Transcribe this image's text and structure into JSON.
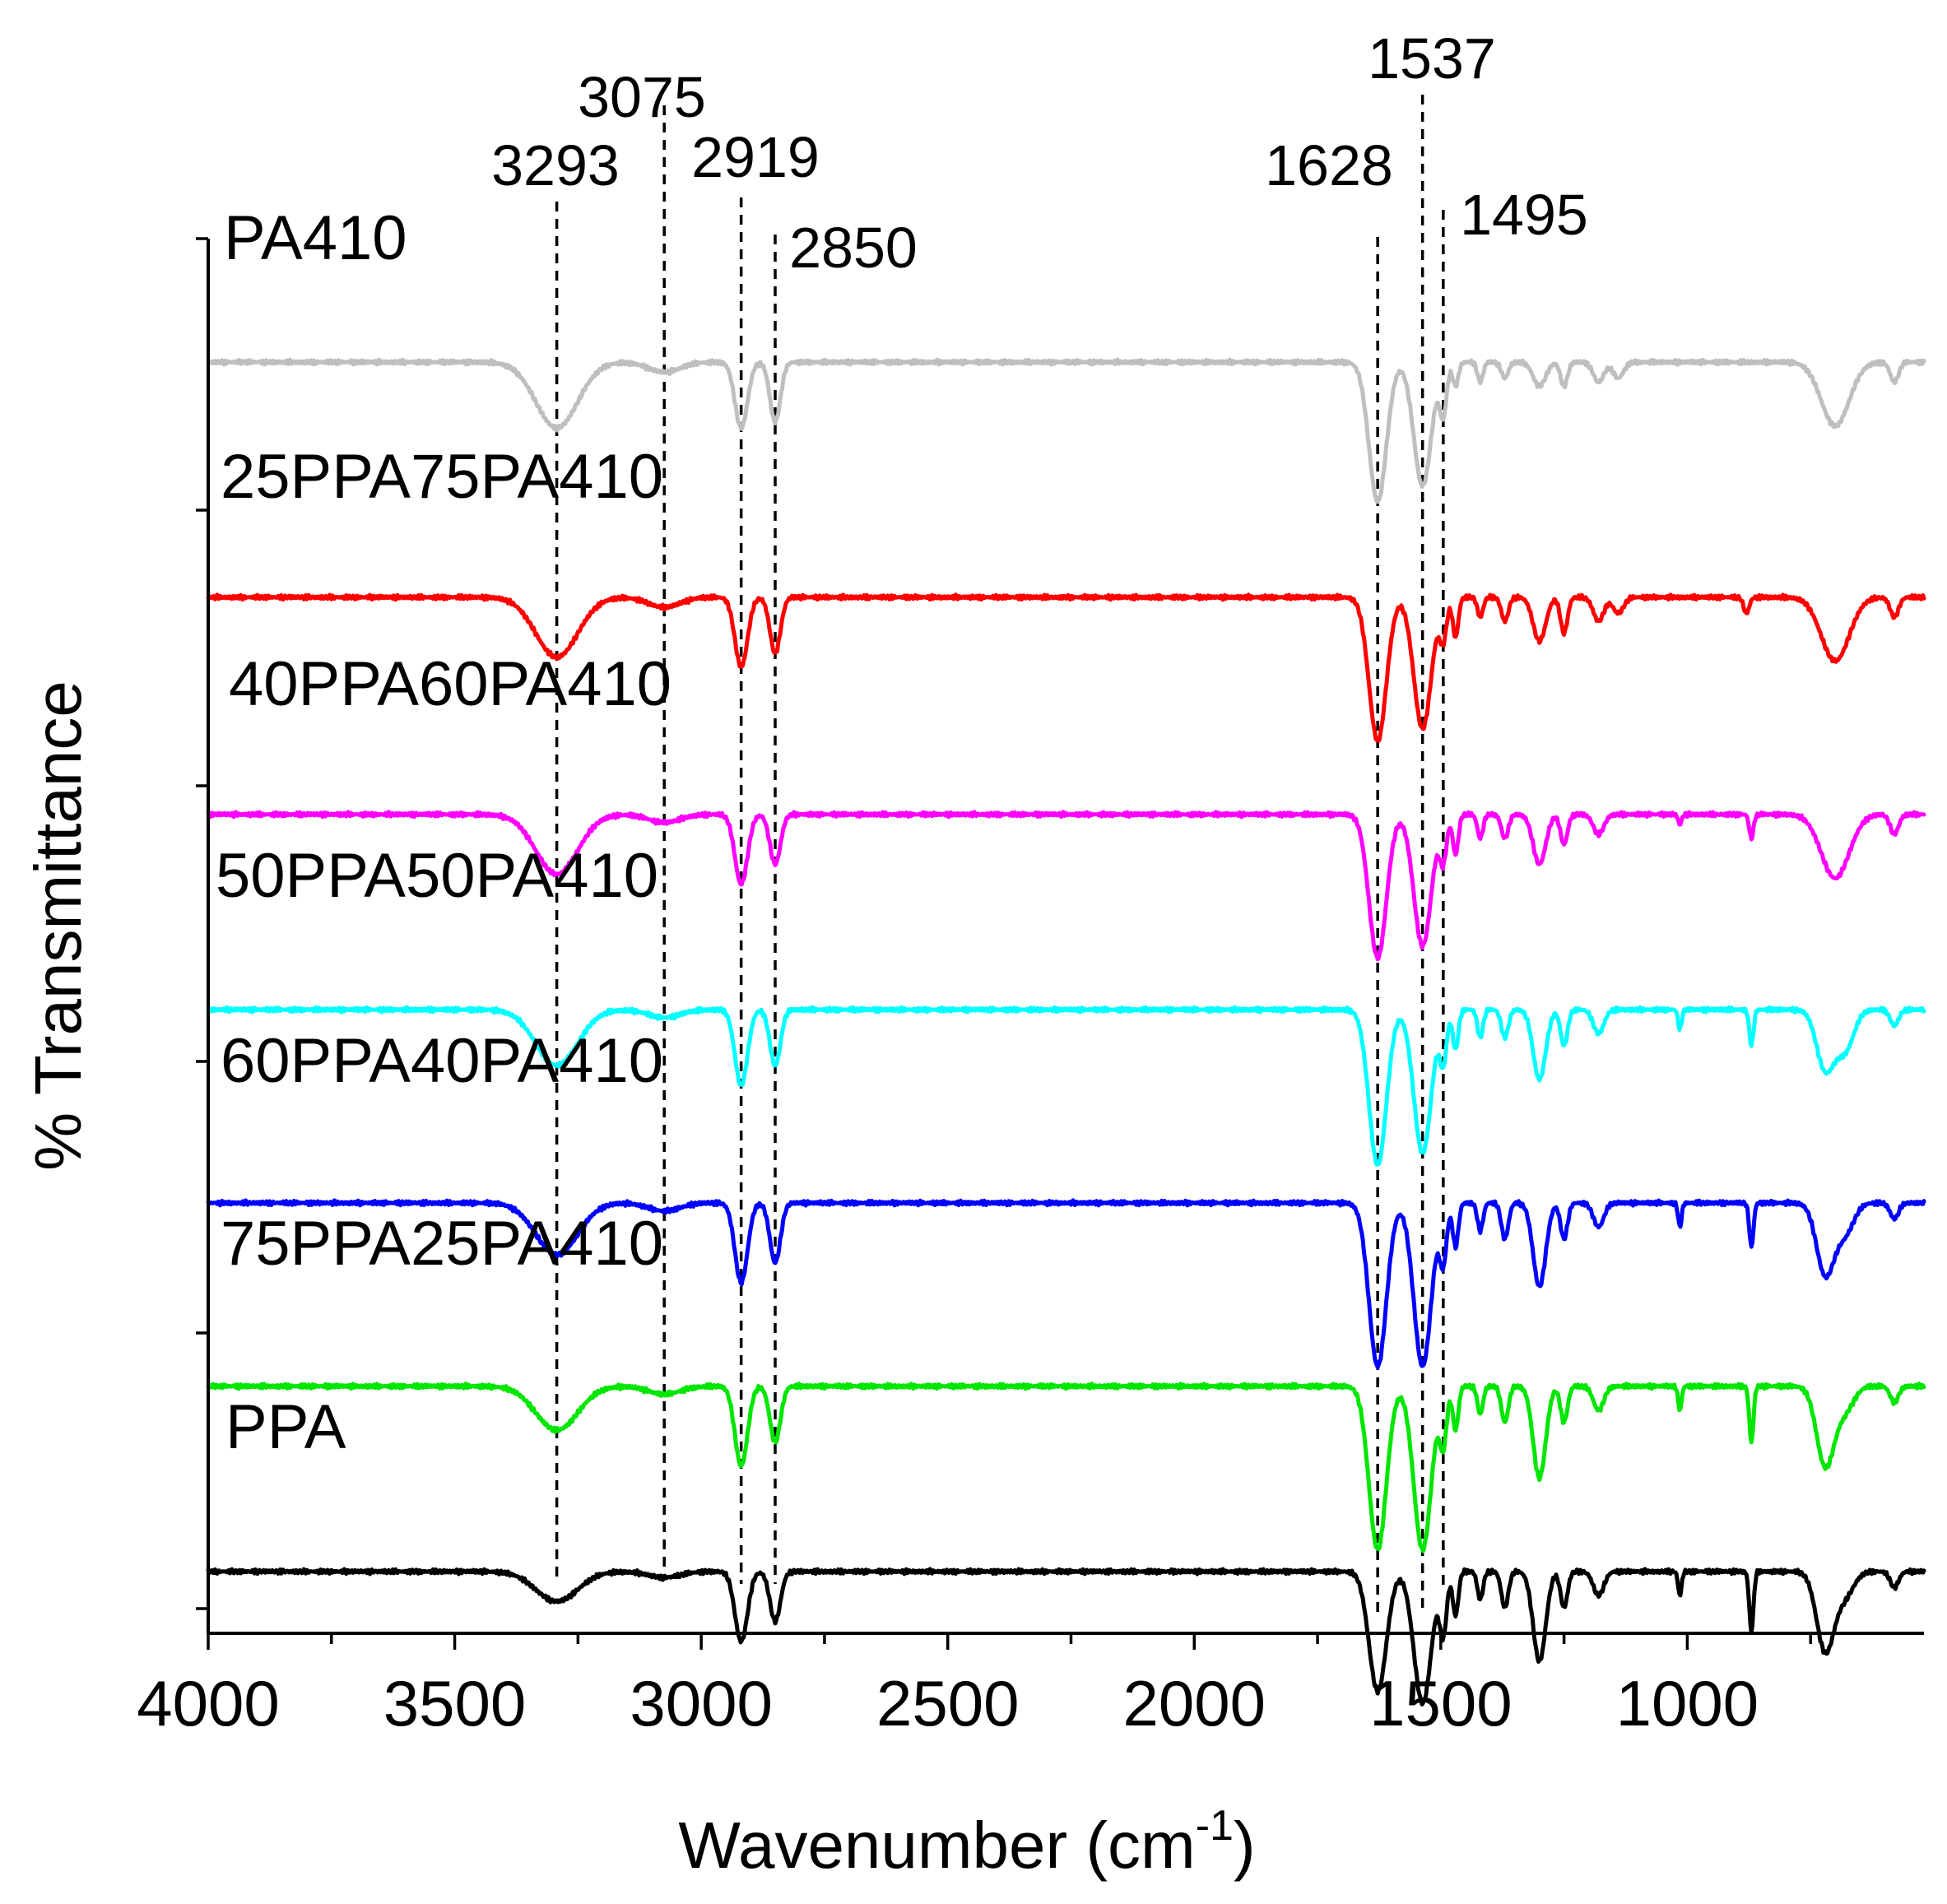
{
  "chart_data": {
    "type": "line",
    "title": "",
    "xlabel": "Wavenumber (cm",
    "xlabel_sup": "-1",
    "xlabel_close": ")",
    "ylabel": "% Transmittance",
    "xlim": [
      4000,
      520
    ],
    "x_reversed": true,
    "x_ticks": [
      4000,
      3500,
      3000,
      2500,
      2000,
      1500,
      1000
    ],
    "x_tick_labels": [
      "4000",
      "3500",
      "3000",
      "2500",
      "2000",
      "1500",
      "1000"
    ],
    "x_minor_ticks": [
      3750,
      3250,
      2750,
      2250,
      1750,
      1250,
      750
    ],
    "ylim": [
      0,
      7
    ],
    "y_tick_count": 6,
    "y_tick_labels": "none",
    "reference_peaks": [
      {
        "wavenumber": 3293,
        "label": "3293"
      },
      {
        "wavenumber": 3075,
        "label": "3075"
      },
      {
        "wavenumber": 2919,
        "label": "2919"
      },
      {
        "wavenumber": 2850,
        "label": "2850"
      },
      {
        "wavenumber": 1628,
        "label": "1628"
      },
      {
        "wavenumber": 1537,
        "label": "1537"
      },
      {
        "wavenumber": 1495,
        "label": "1495"
      }
    ],
    "series": [
      {
        "name": "PA410",
        "color": "#bfbfbf",
        "baseline": 6.38,
        "bands": [
          [
            3293,
            60,
            0.33
          ],
          [
            3075,
            45,
            0.05
          ],
          [
            2919,
            18,
            0.33
          ],
          [
            2850,
            15,
            0.3
          ],
          [
            1628,
            25,
            0.7
          ],
          [
            1537,
            25,
            0.62
          ],
          [
            1495,
            10,
            0.25
          ],
          [
            1470,
            8,
            0.12
          ],
          [
            1420,
            8,
            0.1
          ],
          [
            1370,
            10,
            0.08
          ],
          [
            1300,
            18,
            0.12
          ],
          [
            1250,
            10,
            0.12
          ],
          [
            1180,
            15,
            0.1
          ],
          [
            1140,
            15,
            0.08
          ],
          [
            700,
            40,
            0.32
          ],
          [
            580,
            12,
            0.1
          ]
        ]
      },
      {
        "name": "25PPA75PA410",
        "color": "#ff0000",
        "baseline": 5.2,
        "bands": [
          [
            3293,
            60,
            0.3
          ],
          [
            3075,
            45,
            0.05
          ],
          [
            2919,
            18,
            0.35
          ],
          [
            2850,
            15,
            0.28
          ],
          [
            1628,
            25,
            0.72
          ],
          [
            1537,
            25,
            0.66
          ],
          [
            1495,
            10,
            0.2
          ],
          [
            1470,
            8,
            0.2
          ],
          [
            1420,
            8,
            0.1
          ],
          [
            1370,
            10,
            0.12
          ],
          [
            1300,
            18,
            0.22
          ],
          [
            1250,
            10,
            0.18
          ],
          [
            1180,
            15,
            0.12
          ],
          [
            1140,
            15,
            0.08
          ],
          [
            880,
            8,
            0.08
          ],
          [
            700,
            40,
            0.32
          ],
          [
            580,
            12,
            0.1
          ]
        ]
      },
      {
        "name": "40PPA60PA410",
        "color": "#ff00ff",
        "baseline": 4.11,
        "bands": [
          [
            3293,
            60,
            0.3
          ],
          [
            3075,
            45,
            0.04
          ],
          [
            2919,
            18,
            0.35
          ],
          [
            2850,
            15,
            0.25
          ],
          [
            1628,
            25,
            0.72
          ],
          [
            1537,
            25,
            0.66
          ],
          [
            1495,
            10,
            0.22
          ],
          [
            1470,
            8,
            0.2
          ],
          [
            1420,
            8,
            0.12
          ],
          [
            1370,
            10,
            0.12
          ],
          [
            1300,
            18,
            0.25
          ],
          [
            1250,
            10,
            0.15
          ],
          [
            1180,
            15,
            0.1
          ],
          [
            1015,
            5,
            0.05
          ],
          [
            870,
            6,
            0.12
          ],
          [
            700,
            40,
            0.32
          ],
          [
            580,
            12,
            0.1
          ]
        ]
      },
      {
        "name": "50PPA50PA410",
        "color": "#00ffff",
        "baseline": 3.13,
        "bands": [
          [
            3293,
            60,
            0.28
          ],
          [
            3075,
            45,
            0.04
          ],
          [
            2919,
            18,
            0.38
          ],
          [
            2850,
            15,
            0.28
          ],
          [
            1628,
            25,
            0.78
          ],
          [
            1537,
            25,
            0.72
          ],
          [
            1495,
            10,
            0.25
          ],
          [
            1470,
            8,
            0.2
          ],
          [
            1420,
            8,
            0.14
          ],
          [
            1370,
            10,
            0.14
          ],
          [
            1300,
            18,
            0.35
          ],
          [
            1250,
            10,
            0.18
          ],
          [
            1180,
            15,
            0.12
          ],
          [
            1015,
            5,
            0.1
          ],
          [
            870,
            6,
            0.18
          ],
          [
            720,
            25,
            0.3
          ],
          [
            680,
            25,
            0.2
          ],
          [
            580,
            12,
            0.08
          ]
        ]
      },
      {
        "name": "60PPA40PA410",
        "color": "#0000ff",
        "baseline": 2.16,
        "bands": [
          [
            3293,
            60,
            0.26
          ],
          [
            3075,
            45,
            0.04
          ],
          [
            2919,
            18,
            0.4
          ],
          [
            2850,
            15,
            0.3
          ],
          [
            1628,
            25,
            0.82
          ],
          [
            1537,
            25,
            0.82
          ],
          [
            1495,
            10,
            0.28
          ],
          [
            1470,
            8,
            0.22
          ],
          [
            1420,
            8,
            0.14
          ],
          [
            1370,
            10,
            0.18
          ],
          [
            1300,
            18,
            0.42
          ],
          [
            1250,
            10,
            0.18
          ],
          [
            1180,
            15,
            0.12
          ],
          [
            1015,
            5,
            0.12
          ],
          [
            870,
            6,
            0.22
          ],
          [
            720,
            25,
            0.36
          ],
          [
            680,
            25,
            0.15
          ],
          [
            580,
            12,
            0.08
          ]
        ]
      },
      {
        "name": "75PPA25PA410",
        "color": "#00e600",
        "baseline": 1.24,
        "bands": [
          [
            3293,
            60,
            0.22
          ],
          [
            3075,
            45,
            0.04
          ],
          [
            2919,
            18,
            0.4
          ],
          [
            2850,
            15,
            0.28
          ],
          [
            1628,
            25,
            0.82
          ],
          [
            1537,
            25,
            0.82
          ],
          [
            1495,
            10,
            0.28
          ],
          [
            1470,
            8,
            0.22
          ],
          [
            1420,
            8,
            0.14
          ],
          [
            1370,
            10,
            0.18
          ],
          [
            1300,
            18,
            0.46
          ],
          [
            1250,
            10,
            0.18
          ],
          [
            1180,
            15,
            0.12
          ],
          [
            1015,
            5,
            0.12
          ],
          [
            870,
            6,
            0.28
          ],
          [
            720,
            25,
            0.4
          ],
          [
            680,
            25,
            0.12
          ],
          [
            580,
            12,
            0.08
          ]
        ]
      },
      {
        "name": "PPA",
        "color": "#000000",
        "baseline": 0.31,
        "bands": [
          [
            3293,
            60,
            0.15
          ],
          [
            3075,
            45,
            0.03
          ],
          [
            2919,
            18,
            0.35
          ],
          [
            2850,
            15,
            0.25
          ],
          [
            1628,
            25,
            0.6
          ],
          [
            1537,
            25,
            0.66
          ],
          [
            1495,
            10,
            0.3
          ],
          [
            1470,
            8,
            0.22
          ],
          [
            1420,
            8,
            0.14
          ],
          [
            1370,
            10,
            0.18
          ],
          [
            1300,
            18,
            0.45
          ],
          [
            1250,
            10,
            0.18
          ],
          [
            1180,
            15,
            0.12
          ],
          [
            1015,
            5,
            0.12
          ],
          [
            870,
            6,
            0.3
          ],
          [
            720,
            25,
            0.4
          ],
          [
            680,
            25,
            0.12
          ],
          [
            580,
            12,
            0.08
          ]
        ]
      }
    ]
  }
}
